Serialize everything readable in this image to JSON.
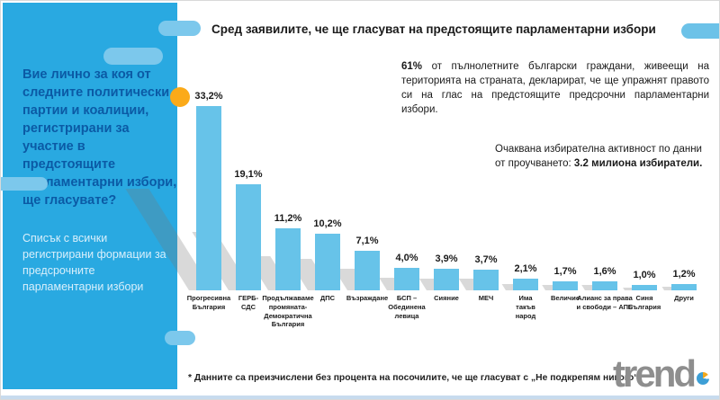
{
  "sidebar": {
    "question": "Вие лично за коя от следните политически партии и коалиции, регистрирани за участие в предстоящите парламентарни избори, ще гласувате?",
    "note": "Списък с всички регистрирани формации за предсрочните парламентарни избори"
  },
  "header": {
    "title": "Сред заявилите, че ще гласуват на предстоящите парламентарни избори"
  },
  "info": {
    "turnout_lead": "61%",
    "turnout_rest": " от пълнолетните български граждани, живеещи на територията на страната, декларират, че ще упражнят правото си на глас на предстоящите предсрочни парламентарни избори.",
    "expected_lead": "Очаквана избирателна активност по данни от проучването: ",
    "expected_bold": "3.2 милиона избиратели."
  },
  "chart_data": {
    "type": "bar",
    "title": "Сред заявилите, че ще гласуват на предстоящите парламентарни избори",
    "categories": [
      "Прогресивна\nБългария",
      "ГЕРБ-\nСДС",
      "Продължаваме\nпромяната-\nДемократична\nБългария",
      "ДПС",
      "Възраждане",
      "БСП –\nОбединена\nлевица",
      "Сияние",
      "МЕЧ",
      "Има\nтакъв\nнарод",
      "Величие",
      "Алианс за права\nи свободи – АПС",
      "Синя\nБългария",
      "Други"
    ],
    "values": [
      33.2,
      19.1,
      11.2,
      10.2,
      7.1,
      4.0,
      3.9,
      3.7,
      2.1,
      1.7,
      1.6,
      1.0,
      1.2
    ],
    "value_labels": [
      "33,2%",
      "19,1%",
      "11,2%",
      "10,2%",
      "7,1%",
      "4,0%",
      "3,9%",
      "3,7%",
      "2,1%",
      "1,7%",
      "1,6%",
      "1,0%",
      "1,2%"
    ],
    "xlabel": "",
    "ylabel": "",
    "ylim": [
      0,
      36
    ],
    "grid": false,
    "legend": "none",
    "bar_color": "#67c3e9"
  },
  "colors": {
    "panel_blue": "#29a9e1",
    "pill_blue": "#7cc8ec",
    "heading_navy": "#0b5aa5",
    "bar_blue": "#67c3e9",
    "accent_orange": "#fbaa19"
  },
  "footnote": "* Данните са преизчислени без процента на посочилите, че ще гласуват с „Не подкрепям никого“",
  "logo": {
    "text": "trend"
  }
}
